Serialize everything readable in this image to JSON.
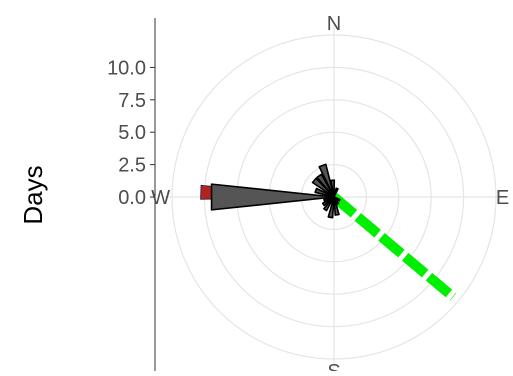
{
  "chart_data": {
    "type": "wind-rose",
    "ylabel": "Days",
    "ytick_labels": [
      "10.0",
      "7.5",
      "5.0",
      "2.5",
      "0.0"
    ],
    "yticks": [
      10,
      7.5,
      5,
      2.5,
      0
    ],
    "rlim": [
      0,
      12.5
    ],
    "grid": true,
    "direction_labels": [
      {
        "label": "N",
        "angle_deg": 0
      },
      {
        "label": "E",
        "angle_deg": 90
      },
      {
        "label": "S",
        "angle_deg": 180
      },
      {
        "label": "W",
        "angle_deg": 270
      }
    ],
    "bars": [
      {
        "angle_deg": 270,
        "value": 9.5
      },
      {
        "angle_deg": 290,
        "value": 1.5
      },
      {
        "angle_deg": 310,
        "value": 2.0
      },
      {
        "angle_deg": 325,
        "value": 2.0
      },
      {
        "angle_deg": 340,
        "value": 2.6
      },
      {
        "angle_deg": 355,
        "value": 1.3
      },
      {
        "angle_deg": 20,
        "value": 0.7
      },
      {
        "angle_deg": 120,
        "value": 0.5
      },
      {
        "angle_deg": 150,
        "value": 0.6
      },
      {
        "angle_deg": 170,
        "value": 1.4
      },
      {
        "angle_deg": 190,
        "value": 1.6
      },
      {
        "angle_deg": 215,
        "value": 1.2
      },
      {
        "angle_deg": 235,
        "value": 1.0
      },
      {
        "angle_deg": 250,
        "value": 0.8
      }
    ],
    "background_wedge": {
      "angle_deg": 272,
      "value": 10.3,
      "color": "#b22222"
    },
    "direction_line": {
      "angle_deg": 130,
      "value": 12.0,
      "color": "#00ee00"
    },
    "colors": {
      "bar_fill": "#555555",
      "bar_stroke": "#000000",
      "grid": "#e5e5e5",
      "axis": "#333333"
    }
  }
}
